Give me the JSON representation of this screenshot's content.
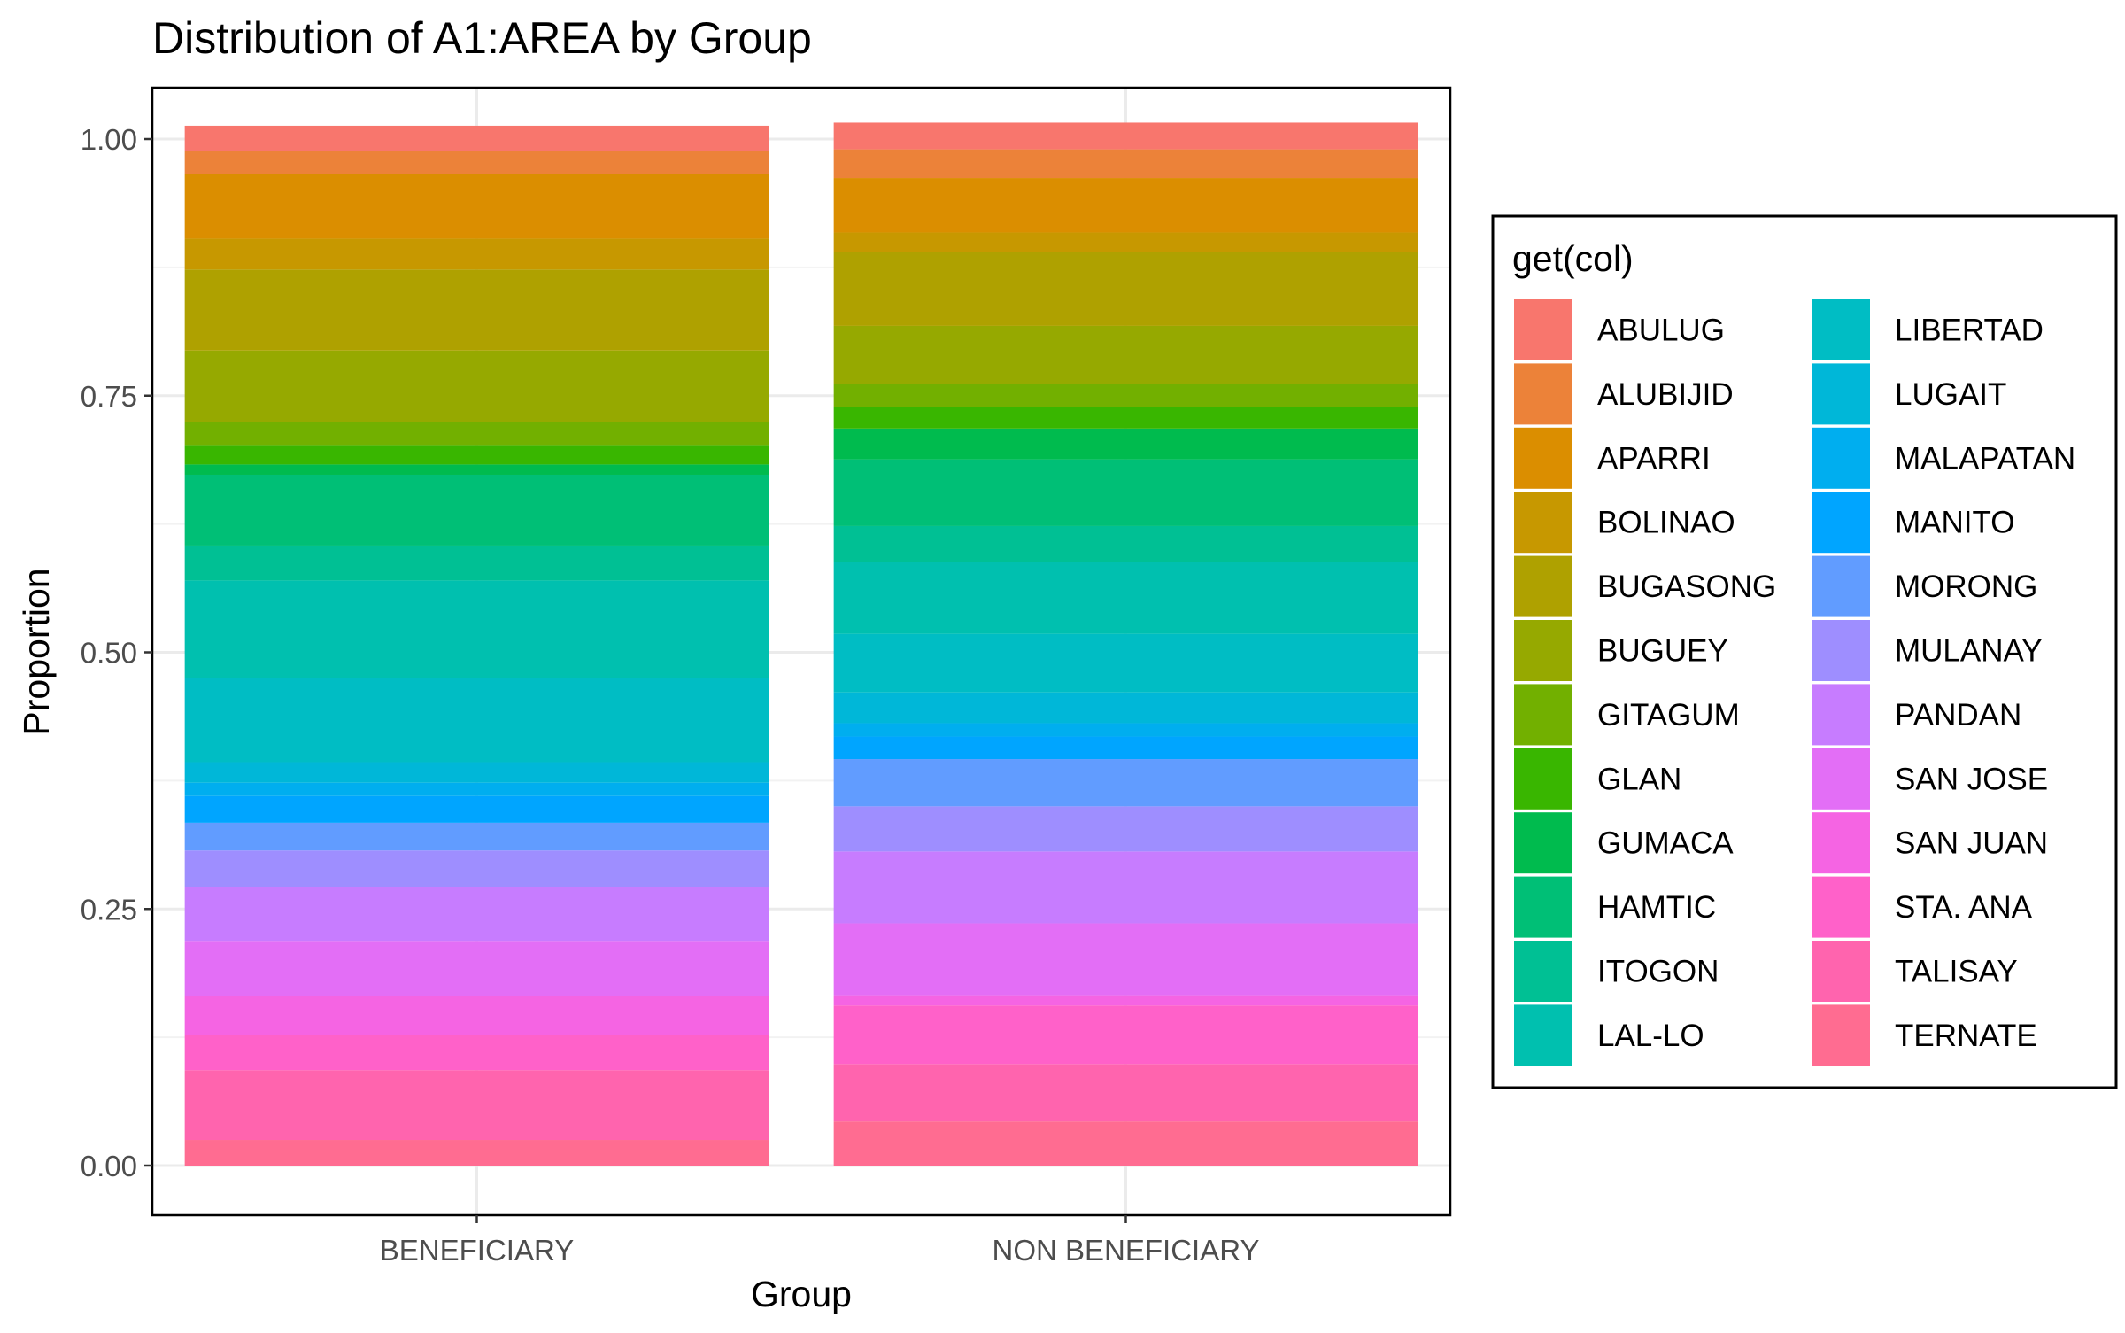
{
  "chart_data": {
    "type": "bar",
    "stacked": true,
    "normalized": true,
    "title": "Distribution of A1:AREA by Group",
    "xlabel": "Group",
    "ylabel": "Proportion",
    "ylim": [
      0,
      1
    ],
    "y_ticks": [
      "0.00",
      "0.25",
      "0.50",
      "0.75",
      "1.00"
    ],
    "categories": [
      "BENEFICIARY",
      "NON BENEFICIARY"
    ],
    "legend_title": "get(col)",
    "legend_position": "right",
    "grid": true,
    "series": [
      {
        "name": "ABULUG",
        "color": "#F8766D",
        "values": [
          0.025,
          0.026
        ]
      },
      {
        "name": "ALUBIJID",
        "color": "#EC8239",
        "values": [
          0.022,
          0.028
        ]
      },
      {
        "name": "APARRI",
        "color": "#DB8E00",
        "values": [
          0.063,
          0.053
        ]
      },
      {
        "name": "BOLINAO",
        "color": "#C79800",
        "values": [
          0.03,
          0.019
        ]
      },
      {
        "name": "BUGASONG",
        "color": "#AFA100",
        "values": [
          0.079,
          0.072
        ]
      },
      {
        "name": "BUGUEY",
        "color": "#96A900",
        "values": [
          0.07,
          0.057
        ]
      },
      {
        "name": "GITAGUM",
        "color": "#72B000",
        "values": [
          0.022,
          0.022
        ]
      },
      {
        "name": "GLAN",
        "color": "#39B600",
        "values": [
          0.019,
          0.021
        ]
      },
      {
        "name": "GUMACA",
        "color": "#00BB4E",
        "values": [
          0.01,
          0.03
        ]
      },
      {
        "name": "HAMTIC",
        "color": "#00BF76",
        "values": [
          0.069,
          0.065
        ]
      },
      {
        "name": "ITOGON",
        "color": "#00C094",
        "values": [
          0.034,
          0.035
        ]
      },
      {
        "name": "LAL-LO",
        "color": "#00C0AF",
        "values": [
          0.095,
          0.07
        ]
      },
      {
        "name": "LIBERTAD",
        "color": "#00BDC4",
        "values": [
          0.082,
          0.057
        ]
      },
      {
        "name": "LUGAIT",
        "color": "#00B7D8",
        "values": [
          0.02,
          0.03
        ]
      },
      {
        "name": "MALAPATAN",
        "color": "#00AEEF",
        "values": [
          0.013,
          0.013
        ]
      },
      {
        "name": "MANITO",
        "color": "#00A5FF",
        "values": [
          0.026,
          0.022
        ]
      },
      {
        "name": "MORONG",
        "color": "#619CFF",
        "values": [
          0.027,
          0.046
        ]
      },
      {
        "name": "MULANAY",
        "color": "#9E8EFF",
        "values": [
          0.036,
          0.044
        ]
      },
      {
        "name": "PANDAN",
        "color": "#C77CFF",
        "values": [
          0.052,
          0.07
        ]
      },
      {
        "name": "SAN JOSE",
        "color": "#E36EF6",
        "values": [
          0.054,
          0.07
        ]
      },
      {
        "name": "SAN JUAN",
        "color": "#F564E3",
        "values": [
          0.038,
          0.01
        ]
      },
      {
        "name": "STA. ANA",
        "color": "#FF61C9",
        "values": [
          0.034,
          0.057
        ]
      },
      {
        "name": "TALISAY",
        "color": "#FF64AE",
        "values": [
          0.068,
          0.056
        ]
      },
      {
        "name": "TERNATE",
        "color": "#FF6C91",
        "values": [
          0.025,
          0.043
        ]
      }
    ]
  }
}
